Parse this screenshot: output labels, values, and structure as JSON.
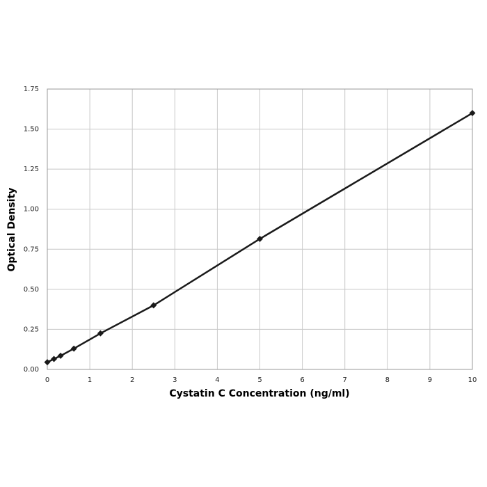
{
  "chart_data": {
    "type": "line",
    "xlabel": "Cystatin C Concentration (ng/ml)",
    "ylabel": "Optical Density",
    "x": [
      0,
      0.156,
      0.3125,
      0.625,
      1.25,
      2.5,
      5,
      10
    ],
    "values": [
      0.045,
      0.065,
      0.085,
      0.13,
      0.225,
      0.4,
      0.815,
      1.6
    ],
    "color": "#1a1a1a",
    "marker": "diamond",
    "xlim": [
      0,
      10
    ],
    "xticks": [
      0,
      1,
      2,
      3,
      4,
      5,
      6,
      7,
      8,
      9,
      10
    ],
    "ylim": [
      0,
      1.75
    ],
    "yticks": [
      {
        "value": 0,
        "label": "0.00"
      },
      {
        "value": 0.25,
        "label": "0.25"
      },
      {
        "value": 0.5,
        "label": "0.50"
      },
      {
        "value": 0.75,
        "label": "0.75"
      },
      {
        "value": 1,
        "label": "1.00"
      },
      {
        "value": 1.25,
        "label": "1.25"
      },
      {
        "value": 1.5,
        "label": "1.50"
      },
      {
        "value": 1.75,
        "label": "1.75"
      }
    ],
    "grid": true
  }
}
